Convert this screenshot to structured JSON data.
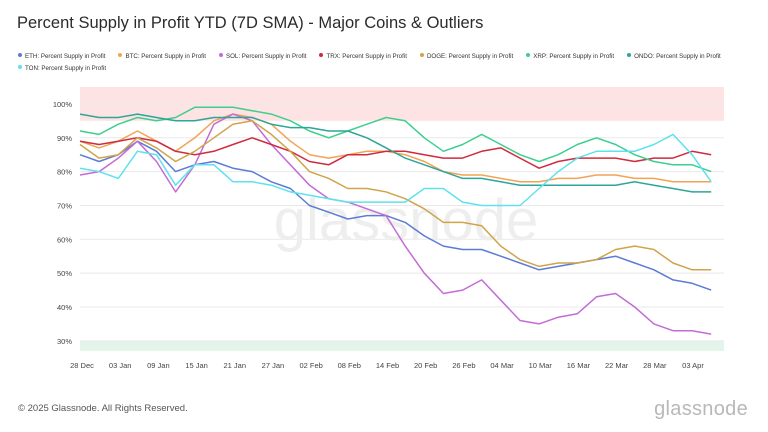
{
  "header": {
    "title": "Percent Supply in Profit YTD (7D SMA) - Major Coins & Outliers"
  },
  "footer": {
    "copyright": "© 2025 Glassnode. All Rights Reserved.",
    "brand": "glassnode"
  },
  "watermark": "glassnode",
  "chart_data": {
    "type": "line",
    "x_tick_labels": [
      "28 Dec",
      "03 Jan",
      "09 Jan",
      "15 Jan",
      "21 Jan",
      "27 Jan",
      "02 Feb",
      "08 Feb",
      "14 Feb",
      "20 Feb",
      "26 Feb",
      "04 Mar",
      "10 Mar",
      "16 Mar",
      "22 Mar",
      "28 Mar",
      "03 Apr"
    ],
    "y_tick_labels": [
      "30%",
      "40%",
      "50%",
      "60%",
      "70%",
      "80%",
      "90%",
      "100%"
    ],
    "ylim": [
      27,
      105
    ],
    "x_range_days": [
      0,
      101
    ],
    "grid": true,
    "shaded_bands": [
      {
        "from": 95,
        "to": 105,
        "color": "#fde3e3"
      },
      {
        "from": 27,
        "to": 30,
        "color": "#e3f4ea"
      }
    ],
    "series": [
      {
        "name": "ETH: Percent Supply in Profit",
        "color": "#5b7bd5",
        "points": [
          [
            0,
            85
          ],
          [
            3,
            83
          ],
          [
            6,
            85
          ],
          [
            9,
            89
          ],
          [
            12,
            86
          ],
          [
            15,
            80
          ],
          [
            18,
            82
          ],
          [
            21,
            83
          ],
          [
            24,
            81
          ],
          [
            27,
            80
          ],
          [
            30,
            77
          ],
          [
            33,
            75
          ],
          [
            36,
            70
          ],
          [
            39,
            68
          ],
          [
            42,
            66
          ],
          [
            45,
            67
          ],
          [
            48,
            67
          ],
          [
            51,
            65
          ],
          [
            54,
            61
          ],
          [
            57,
            58
          ],
          [
            60,
            57
          ],
          [
            63,
            57
          ],
          [
            66,
            55
          ],
          [
            69,
            53
          ],
          [
            72,
            51
          ],
          [
            75,
            52
          ],
          [
            78,
            53
          ],
          [
            81,
            54
          ],
          [
            84,
            55
          ],
          [
            87,
            53
          ],
          [
            90,
            51
          ],
          [
            93,
            48
          ],
          [
            96,
            47
          ],
          [
            99,
            45
          ]
        ]
      },
      {
        "name": "BTC: Percent Supply in Profit",
        "color": "#f2a356",
        "points": [
          [
            0,
            89
          ],
          [
            3,
            87
          ],
          [
            6,
            89
          ],
          [
            9,
            92
          ],
          [
            12,
            89
          ],
          [
            15,
            86
          ],
          [
            18,
            90
          ],
          [
            21,
            95
          ],
          [
            24,
            97
          ],
          [
            27,
            96
          ],
          [
            30,
            94
          ],
          [
            33,
            89
          ],
          [
            36,
            85
          ],
          [
            39,
            84
          ],
          [
            42,
            85
          ],
          [
            45,
            86
          ],
          [
            48,
            86
          ],
          [
            51,
            85
          ],
          [
            54,
            83
          ],
          [
            57,
            80
          ],
          [
            60,
            79
          ],
          [
            63,
            79
          ],
          [
            66,
            78
          ],
          [
            69,
            77
          ],
          [
            72,
            77
          ],
          [
            75,
            78
          ],
          [
            78,
            78
          ],
          [
            81,
            79
          ],
          [
            84,
            79
          ],
          [
            87,
            78
          ],
          [
            90,
            78
          ],
          [
            93,
            77
          ],
          [
            96,
            77
          ],
          [
            99,
            77
          ]
        ]
      },
      {
        "name": "SOL: Percent Supply in Profit",
        "color": "#c36cd6",
        "points": [
          [
            0,
            79
          ],
          [
            3,
            80
          ],
          [
            6,
            84
          ],
          [
            9,
            89
          ],
          [
            12,
            83
          ],
          [
            15,
            74
          ],
          [
            18,
            82
          ],
          [
            21,
            94
          ],
          [
            24,
            97
          ],
          [
            27,
            95
          ],
          [
            30,
            88
          ],
          [
            33,
            82
          ],
          [
            36,
            76
          ],
          [
            39,
            72
          ],
          [
            42,
            71
          ],
          [
            45,
            69
          ],
          [
            48,
            67
          ],
          [
            51,
            58
          ],
          [
            54,
            50
          ],
          [
            57,
            44
          ],
          [
            60,
            45
          ],
          [
            63,
            48
          ],
          [
            66,
            42
          ],
          [
            69,
            36
          ],
          [
            72,
            35
          ],
          [
            75,
            37
          ],
          [
            78,
            38
          ],
          [
            81,
            43
          ],
          [
            84,
            44
          ],
          [
            87,
            40
          ],
          [
            90,
            35
          ],
          [
            93,
            33
          ],
          [
            96,
            33
          ],
          [
            99,
            32
          ]
        ]
      },
      {
        "name": "TRX: Percent Supply in Profit",
        "color": "#cf2b3e",
        "points": [
          [
            0,
            89
          ],
          [
            3,
            88
          ],
          [
            6,
            89
          ],
          [
            9,
            90
          ],
          [
            12,
            89
          ],
          [
            15,
            86
          ],
          [
            18,
            85
          ],
          [
            21,
            86
          ],
          [
            24,
            88
          ],
          [
            27,
            90
          ],
          [
            30,
            88
          ],
          [
            33,
            86
          ],
          [
            36,
            83
          ],
          [
            39,
            82
          ],
          [
            42,
            85
          ],
          [
            45,
            85
          ],
          [
            48,
            86
          ],
          [
            51,
            86
          ],
          [
            54,
            85
          ],
          [
            57,
            84
          ],
          [
            60,
            84
          ],
          [
            63,
            86
          ],
          [
            66,
            87
          ],
          [
            69,
            84
          ],
          [
            72,
            81
          ],
          [
            75,
            83
          ],
          [
            78,
            84
          ],
          [
            81,
            84
          ],
          [
            84,
            84
          ],
          [
            87,
            83
          ],
          [
            90,
            84
          ],
          [
            93,
            84
          ],
          [
            96,
            86
          ],
          [
            99,
            85
          ]
        ]
      },
      {
        "name": "DOGE: Percent Supply in Profit",
        "color": "#d0a44a",
        "points": [
          [
            0,
            88
          ],
          [
            3,
            84
          ],
          [
            6,
            85
          ],
          [
            9,
            90
          ],
          [
            12,
            87
          ],
          [
            15,
            83
          ],
          [
            18,
            86
          ],
          [
            21,
            90
          ],
          [
            24,
            94
          ],
          [
            27,
            95
          ],
          [
            30,
            91
          ],
          [
            33,
            86
          ],
          [
            36,
            80
          ],
          [
            39,
            78
          ],
          [
            42,
            75
          ],
          [
            45,
            75
          ],
          [
            48,
            74
          ],
          [
            51,
            72
          ],
          [
            54,
            69
          ],
          [
            57,
            65
          ],
          [
            60,
            65
          ],
          [
            63,
            64
          ],
          [
            66,
            58
          ],
          [
            69,
            54
          ],
          [
            72,
            52
          ],
          [
            75,
            53
          ],
          [
            78,
            53
          ],
          [
            81,
            54
          ],
          [
            84,
            57
          ],
          [
            87,
            58
          ],
          [
            90,
            57
          ],
          [
            93,
            53
          ],
          [
            96,
            51
          ],
          [
            99,
            51
          ]
        ]
      },
      {
        "name": "XRP: Percent Supply in Profit",
        "color": "#3ecf8e",
        "points": [
          [
            0,
            92
          ],
          [
            3,
            91
          ],
          [
            6,
            94
          ],
          [
            9,
            96
          ],
          [
            12,
            95
          ],
          [
            15,
            96
          ],
          [
            18,
            99
          ],
          [
            21,
            99
          ],
          [
            24,
            99
          ],
          [
            27,
            98
          ],
          [
            30,
            97
          ],
          [
            33,
            95
          ],
          [
            36,
            92
          ],
          [
            39,
            90
          ],
          [
            42,
            92
          ],
          [
            45,
            94
          ],
          [
            48,
            96
          ],
          [
            51,
            95
          ],
          [
            54,
            90
          ],
          [
            57,
            86
          ],
          [
            60,
            88
          ],
          [
            63,
            91
          ],
          [
            66,
            88
          ],
          [
            69,
            85
          ],
          [
            72,
            83
          ],
          [
            75,
            85
          ],
          [
            78,
            88
          ],
          [
            81,
            90
          ],
          [
            84,
            88
          ],
          [
            87,
            85
          ],
          [
            90,
            83
          ],
          [
            93,
            82
          ],
          [
            96,
            82
          ],
          [
            99,
            80
          ]
        ]
      },
      {
        "name": "ONDO: Percent Supply in Profit",
        "color": "#2ea598",
        "points": [
          [
            0,
            97
          ],
          [
            3,
            96
          ],
          [
            6,
            96
          ],
          [
            9,
            97
          ],
          [
            12,
            96
          ],
          [
            15,
            95
          ],
          [
            18,
            95
          ],
          [
            21,
            96
          ],
          [
            24,
            96
          ],
          [
            27,
            96
          ],
          [
            30,
            94
          ],
          [
            33,
            93
          ],
          [
            36,
            93
          ],
          [
            39,
            92
          ],
          [
            42,
            92
          ],
          [
            45,
            90
          ],
          [
            48,
            87
          ],
          [
            51,
            84
          ],
          [
            54,
            82
          ],
          [
            57,
            80
          ],
          [
            60,
            78
          ],
          [
            63,
            78
          ],
          [
            66,
            77
          ],
          [
            69,
            76
          ],
          [
            72,
            76
          ],
          [
            75,
            76
          ],
          [
            78,
            76
          ],
          [
            81,
            76
          ],
          [
            84,
            76
          ],
          [
            87,
            77
          ],
          [
            90,
            76
          ],
          [
            93,
            75
          ],
          [
            96,
            74
          ],
          [
            99,
            74
          ]
        ]
      },
      {
        "name": "TON: Percent Supply in Profit",
        "color": "#5ee2ee",
        "points": [
          [
            0,
            81
          ],
          [
            3,
            80
          ],
          [
            6,
            78
          ],
          [
            9,
            86
          ],
          [
            12,
            85
          ],
          [
            15,
            76
          ],
          [
            18,
            82
          ],
          [
            21,
            82
          ],
          [
            24,
            77
          ],
          [
            27,
            77
          ],
          [
            30,
            76
          ],
          [
            33,
            74
          ],
          [
            36,
            73
          ],
          [
            39,
            72
          ],
          [
            42,
            71
          ],
          [
            45,
            71
          ],
          [
            48,
            71
          ],
          [
            51,
            71
          ],
          [
            54,
            75
          ],
          [
            57,
            75
          ],
          [
            60,
            71
          ],
          [
            63,
            70
          ],
          [
            66,
            70
          ],
          [
            69,
            70
          ],
          [
            72,
            75
          ],
          [
            75,
            80
          ],
          [
            78,
            84
          ],
          [
            81,
            86
          ],
          [
            84,
            86
          ],
          [
            87,
            86
          ],
          [
            90,
            88
          ],
          [
            93,
            91
          ],
          [
            96,
            85
          ],
          [
            99,
            77
          ]
        ]
      }
    ]
  }
}
